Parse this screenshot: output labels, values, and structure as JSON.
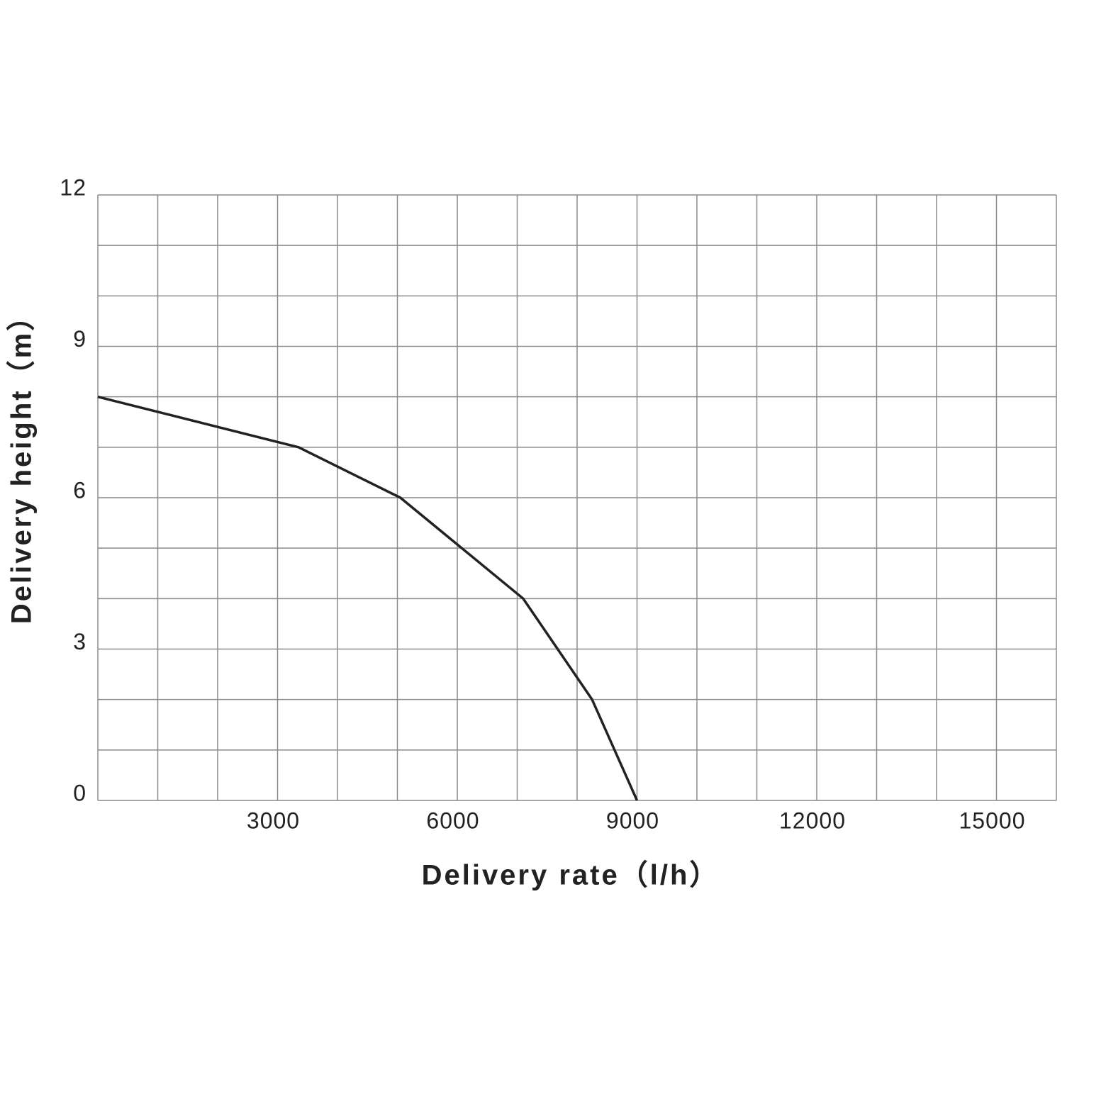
{
  "chart_data": {
    "type": "line",
    "x_label": "Delivery rate（l/h）",
    "y_label": "Delivery height（m）",
    "x": [
      0,
      3350,
      5050,
      7100,
      8250,
      9000
    ],
    "series": [
      {
        "color": "#222222",
        "values": [
          8,
          7,
          6,
          4,
          2,
          0
        ]
      }
    ],
    "xlim": [
      0,
      16000
    ],
    "xticks": [
      3000,
      6000,
      9000,
      12000,
      15000
    ],
    "ylim": [
      0,
      12
    ],
    "yticks": [
      0,
      3,
      6,
      9,
      12
    ],
    "grid": true,
    "xgrid": [
      0,
      1000,
      2000,
      3000,
      4000,
      5000,
      6000,
      7000,
      8000,
      9000,
      10000,
      11000,
      12000,
      13000,
      14000,
      15000,
      16000
    ],
    "ygrid": [
      0,
      1,
      2,
      3,
      4,
      5,
      6,
      7,
      8,
      9,
      10,
      11,
      12
    ]
  }
}
